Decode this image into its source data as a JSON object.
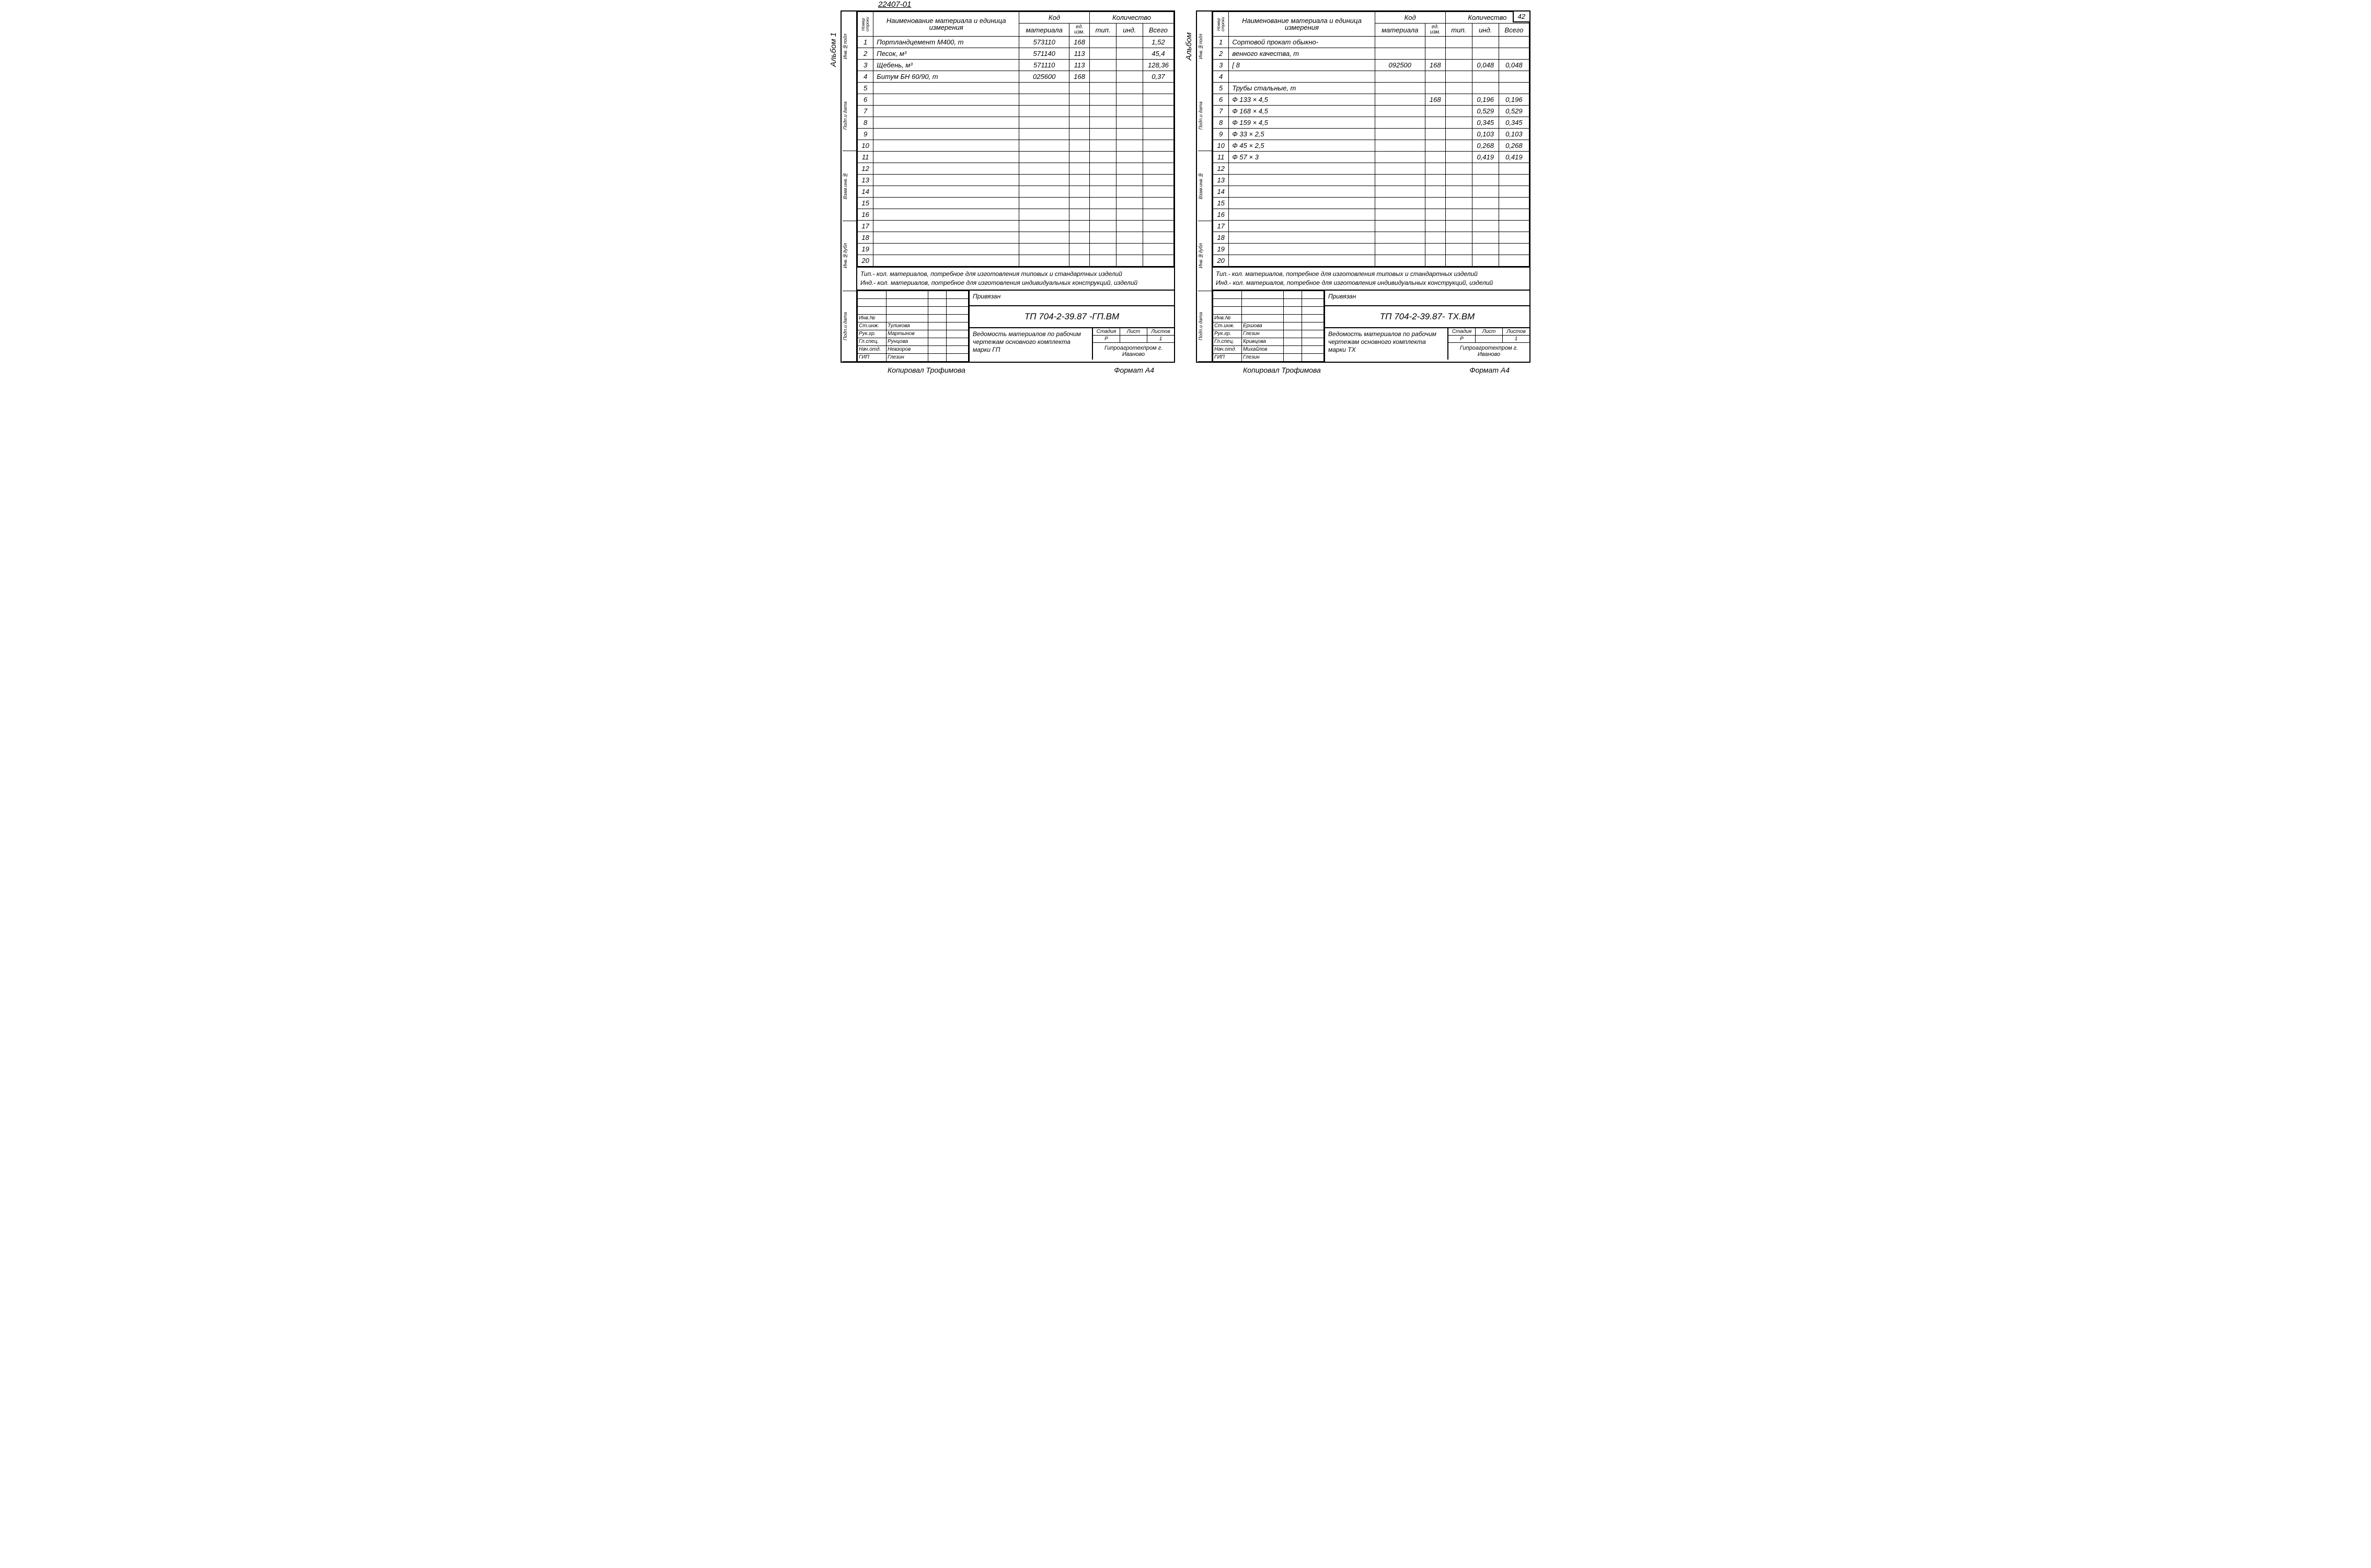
{
  "columns": {
    "row_num": "Номер строки",
    "name": "Наименование материала и единица измерения",
    "code_group": "Код",
    "code_mat": "материала",
    "code_unit": "ед. изм.",
    "qty_group": "Количество",
    "qty_typ": "тип.",
    "qty_ind": "инд.",
    "qty_total": "Всего"
  },
  "left": {
    "doc_code": "22407-01",
    "album": "Альбом 1",
    "side_stamps": [
      "Инв.№подл",
      "Подп.и дата",
      "Взам.инв.№",
      "Инв.№дубл",
      "Подп.и дата"
    ],
    "rows": [
      {
        "n": "1",
        "name": "Портландцемент М400,    т",
        "mat": "573110",
        "unit": "168",
        "typ": "",
        "ind": "",
        "tot": "1,52"
      },
      {
        "n": "2",
        "name": "Песок,                          м³",
        "mat": "571140",
        "unit": "113",
        "typ": "",
        "ind": "",
        "tot": "45,4"
      },
      {
        "n": "3",
        "name": "Щебень,                        м³",
        "mat": "571110",
        "unit": "113",
        "typ": "",
        "ind": "",
        "tot": "128,36"
      },
      {
        "n": "4",
        "name": "Битум БН 60/90,            т",
        "mat": "025600",
        "unit": "168",
        "typ": "",
        "ind": "",
        "tot": "0,37"
      },
      {
        "n": "5"
      },
      {
        "n": "6"
      },
      {
        "n": "7"
      },
      {
        "n": "8"
      },
      {
        "n": "9"
      },
      {
        "n": "10"
      },
      {
        "n": "11"
      },
      {
        "n": "12"
      },
      {
        "n": "13"
      },
      {
        "n": "14"
      },
      {
        "n": "15"
      },
      {
        "n": "16"
      },
      {
        "n": "17"
      },
      {
        "n": "18"
      },
      {
        "n": "19"
      },
      {
        "n": "20"
      }
    ],
    "note1": "Тип.- кол. материалов, потребное для изготовления типовых и стандартных изделий",
    "note2": "Инд.- кол. материалов, потребное для изготовления индивидуальных конструкций, изделий",
    "tb": {
      "priv": "Привязан",
      "roles": [
        [
          "",
          "",
          "",
          ""
        ],
        [
          "",
          "",
          "",
          ""
        ],
        [
          "",
          "",
          "",
          ""
        ],
        [
          "Инв.№",
          "",
          "",
          ""
        ],
        [
          "Ст.инж.",
          "Туликова",
          "",
          ""
        ],
        [
          "Рук.гр.",
          "Мартынов",
          "",
          ""
        ],
        [
          "Гл.спец.",
          "Рунцова",
          "",
          ""
        ],
        [
          "Нач.отд.",
          "Невзоров",
          "",
          ""
        ],
        [
          "ГИП",
          "Глезин",
          "",
          ""
        ]
      ],
      "proj": "ТП   704-2-39.87        -ГП.ВМ",
      "desc": "Ведомость материалов по рабочим чертежам основного комплекта марки ГП",
      "meta_h": [
        "Стадия",
        "Лист",
        "Листов"
      ],
      "meta_v": [
        "Р",
        "",
        "1"
      ],
      "org": "Гипроагротехпром г. Иваново"
    },
    "footer_l": "Копировал Трофимова",
    "footer_r": "Формат А4"
  },
  "right": {
    "page_num": "42",
    "album": "Альбом",
    "side_stamps": [
      "Инв.№подл",
      "Подп.и дата",
      "Взам.инв.№",
      "Инв.№дубл",
      "Подп.и дата"
    ],
    "rows": [
      {
        "n": "1",
        "name": "Сортовой прокат обыкно-"
      },
      {
        "n": "2",
        "name": "венного качества,   т"
      },
      {
        "n": "3",
        "name": "        [ 8",
        "mat": "092500",
        "unit": "168",
        "typ": "",
        "ind": "0,048",
        "tot": "0,048"
      },
      {
        "n": "4"
      },
      {
        "n": "5",
        "name": "Трубы стальные,  т"
      },
      {
        "n": "6",
        "name": "     Ф 133 × 4,5",
        "mat": "",
        "unit": "168",
        "typ": "",
        "ind": "0,196",
        "tot": "0,196"
      },
      {
        "n": "7",
        "name": "     Ф 168 × 4,5",
        "ind": "0,529",
        "tot": "0,529"
      },
      {
        "n": "8",
        "name": "     Ф 159 × 4,5",
        "ind": "0,345",
        "tot": "0,345"
      },
      {
        "n": "9",
        "name": "     Ф 33 × 2,5",
        "ind": "0,103",
        "tot": "0,103"
      },
      {
        "n": "10",
        "name": "     Ф 45 × 2,5",
        "ind": "0,268",
        "tot": "0,268"
      },
      {
        "n": "11",
        "name": "     Ф 57 × 3",
        "ind": "0,419",
        "tot": "0,419"
      },
      {
        "n": "12"
      },
      {
        "n": "13"
      },
      {
        "n": "14"
      },
      {
        "n": "15"
      },
      {
        "n": "16"
      },
      {
        "n": "17"
      },
      {
        "n": "18"
      },
      {
        "n": "19"
      },
      {
        "n": "20"
      }
    ],
    "note1": "Тип.- кол. материалов, потребное для изготовления типовых и стандартных изделий",
    "note2": "Инд.- кол. материалов, потребное для изготовления индивидуальных конструкций, изделий",
    "tb": {
      "priv": "Привязан",
      "roles": [
        [
          "",
          "",
          "",
          ""
        ],
        [
          "",
          "",
          "",
          ""
        ],
        [
          "",
          "",
          "",
          ""
        ],
        [
          "Инв.№",
          "",
          "",
          ""
        ],
        [
          "Ст.инж.",
          "Ершова",
          "",
          ""
        ],
        [
          "Рук.гр.",
          "Глезин",
          "",
          ""
        ],
        [
          "Гл.спец.",
          "Кривцова",
          "",
          ""
        ],
        [
          "Нач.отд.",
          "Михайлов",
          "",
          ""
        ],
        [
          "ГИП",
          "Глезин",
          "",
          ""
        ]
      ],
      "proj": "ТП 704-2-39.87- ТХ.ВМ",
      "desc": "Ведомость материалов по рабочим чертежам основного комплекта марки ТХ",
      "meta_h": [
        "Стадия",
        "Лист",
        "Листов"
      ],
      "meta_v": [
        "Р",
        "",
        "1"
      ],
      "org": "Гипроагротехпром г. Иваново"
    },
    "footer_l": "Копировал Трофимова",
    "footer_r": "Формат А4"
  }
}
